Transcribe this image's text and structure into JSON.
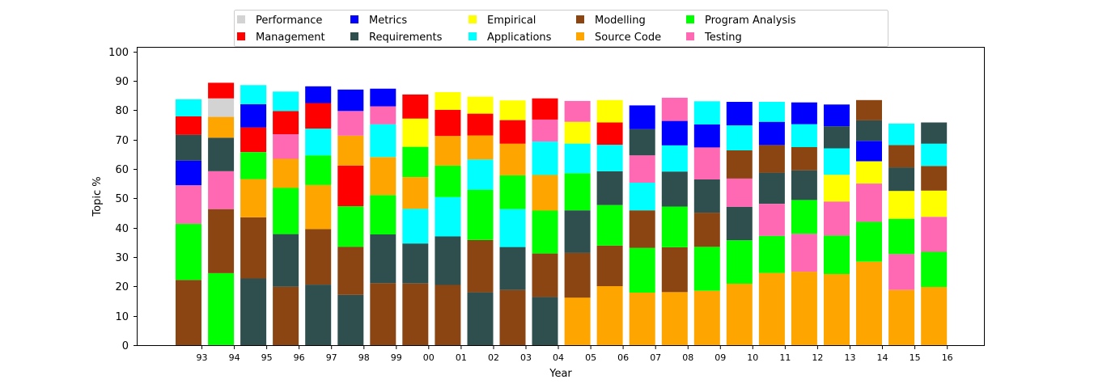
{
  "chart_data": {
    "type": "bar",
    "stacked": true,
    "xlabel": "Year",
    "ylabel": "Topic %",
    "ylim": [
      0,
      100
    ],
    "yticks": [
      0,
      10,
      20,
      30,
      40,
      50,
      60,
      70,
      80,
      90,
      100
    ],
    "grid": false,
    "legend_position": "top-center",
    "categories": [
      "93",
      "94",
      "95",
      "96",
      "97",
      "98",
      "99",
      "00",
      "01",
      "02",
      "03",
      "04",
      "05",
      "06",
      "07",
      "08",
      "09",
      "10",
      "11",
      "12",
      "13",
      "14",
      "15",
      "16"
    ],
    "legend": [
      {
        "name": "Performance",
        "color": "#d3d3d3"
      },
      {
        "name": "Management",
        "color": "#ff0000"
      },
      {
        "name": "Metrics",
        "color": "#0000ff"
      },
      {
        "name": "Requirements",
        "color": "#2f4f4f"
      },
      {
        "name": "Empirical",
        "color": "#ffff00"
      },
      {
        "name": "Applications",
        "color": "#00ffff"
      },
      {
        "name": "Modelling",
        "color": "#8b4513"
      },
      {
        "name": "Source Code",
        "color": "#ffa500"
      },
      {
        "name": "Program Analysis",
        "color": "#00ff00"
      },
      {
        "name": "Testing",
        "color": "#ff69b4"
      }
    ],
    "stacks": [
      [
        [
          "Modelling",
          22.2
        ],
        [
          "Program Analysis",
          19.1
        ],
        [
          "Testing",
          13.1
        ],
        [
          "Metrics",
          8.4
        ],
        [
          "Requirements",
          8.8
        ],
        [
          "Management",
          6.3
        ],
        [
          "Applications",
          5.8
        ]
      ],
      [
        [
          "Program Analysis",
          24.5
        ],
        [
          "Modelling",
          21.8
        ],
        [
          "Testing",
          12.9
        ],
        [
          "Requirements",
          11.4
        ],
        [
          "Source Code",
          7.1
        ],
        [
          "Performance",
          6.3
        ],
        [
          "Management",
          5.3
        ]
      ],
      [
        [
          "Requirements",
          22.7
        ],
        [
          "Modelling",
          20.8
        ],
        [
          "Source Code",
          13.0
        ],
        [
          "Program Analysis",
          9.2
        ],
        [
          "Management",
          8.4
        ],
        [
          "Metrics",
          7.9
        ],
        [
          "Applications",
          6.5
        ]
      ],
      [
        [
          "Modelling",
          19.9
        ],
        [
          "Requirements",
          17.9
        ],
        [
          "Program Analysis",
          15.7
        ],
        [
          "Source Code",
          9.9
        ],
        [
          "Testing",
          8.4
        ],
        [
          "Management",
          7.9
        ],
        [
          "Applications",
          6.6
        ]
      ],
      [
        [
          "Requirements",
          20.6
        ],
        [
          "Modelling",
          18.9
        ],
        [
          "Source Code",
          15.0
        ],
        [
          "Program Analysis",
          10.1
        ],
        [
          "Applications",
          9.1
        ],
        [
          "Management",
          8.7
        ],
        [
          "Metrics",
          5.7
        ]
      ],
      [
        [
          "Requirements",
          17.1
        ],
        [
          "Modelling",
          16.4
        ],
        [
          "Program Analysis",
          13.8
        ],
        [
          "Management",
          13.8
        ],
        [
          "Source Code",
          10.2
        ],
        [
          "Testing",
          8.4
        ],
        [
          "Metrics",
          7.3
        ]
      ],
      [
        [
          "Modelling",
          21.1
        ],
        [
          "Requirements",
          16.6
        ],
        [
          "Program Analysis",
          13.4
        ],
        [
          "Source Code",
          12.9
        ],
        [
          "Applications",
          11.2
        ],
        [
          "Testing",
          6.1
        ],
        [
          "Metrics",
          6.0
        ]
      ],
      [
        [
          "Modelling",
          21.0
        ],
        [
          "Requirements",
          13.6
        ],
        [
          "Applications",
          11.8
        ],
        [
          "Source Code",
          10.8
        ],
        [
          "Program Analysis",
          10.3
        ],
        [
          "Empirical",
          9.6
        ],
        [
          "Management",
          8.2
        ]
      ],
      [
        [
          "Modelling",
          20.5
        ],
        [
          "Requirements",
          16.5
        ],
        [
          "Applications",
          13.4
        ],
        [
          "Program Analysis",
          10.7
        ],
        [
          "Source Code",
          10.1
        ],
        [
          "Management",
          8.9
        ],
        [
          "Empirical",
          6.0
        ]
      ],
      [
        [
          "Requirements",
          18.0
        ],
        [
          "Modelling",
          17.8
        ],
        [
          "Program Analysis",
          17.1
        ],
        [
          "Applications",
          10.3
        ],
        [
          "Source Code",
          8.2
        ],
        [
          "Management",
          7.4
        ],
        [
          "Empirical",
          5.8
        ]
      ],
      [
        [
          "Modelling",
          18.8
        ],
        [
          "Requirements",
          14.6
        ],
        [
          "Applications",
          12.9
        ],
        [
          "Program Analysis",
          11.5
        ],
        [
          "Source Code",
          10.8
        ],
        [
          "Management",
          8.0
        ],
        [
          "Empirical",
          6.7
        ]
      ],
      [
        [
          "Requirements",
          16.4
        ],
        [
          "Modelling",
          14.8
        ],
        [
          "Program Analysis",
          14.6
        ],
        [
          "Source Code",
          12.1
        ],
        [
          "Applications",
          11.4
        ],
        [
          "Testing",
          7.5
        ],
        [
          "Management",
          7.2
        ]
      ],
      [
        [
          "Source Code",
          16.2
        ],
        [
          "Modelling",
          15.2
        ],
        [
          "Requirements",
          14.5
        ],
        [
          "Program Analysis",
          12.6
        ],
        [
          "Applications",
          10.1
        ],
        [
          "Empirical",
          7.4
        ],
        [
          "Testing",
          7.1
        ]
      ],
      [
        [
          "Source Code",
          20.1
        ],
        [
          "Modelling",
          13.8
        ],
        [
          "Program Analysis",
          13.8
        ],
        [
          "Requirements",
          11.5
        ],
        [
          "Applications",
          9.0
        ],
        [
          "Management",
          7.6
        ],
        [
          "Empirical",
          7.6
        ]
      ],
      [
        [
          "Source Code",
          17.9
        ],
        [
          "Program Analysis",
          15.2
        ],
        [
          "Modelling",
          12.8
        ],
        [
          "Applications",
          9.4
        ],
        [
          "Testing",
          9.3
        ],
        [
          "Requirements",
          8.9
        ],
        [
          "Metrics",
          8.1
        ]
      ],
      [
        [
          "Source Code",
          18.1
        ],
        [
          "Modelling",
          15.2
        ],
        [
          "Program Analysis",
          13.9
        ],
        [
          "Requirements",
          11.9
        ],
        [
          "Applications",
          8.9
        ],
        [
          "Metrics",
          8.3
        ],
        [
          "Testing",
          7.9
        ]
      ],
      [
        [
          "Source Code",
          18.5
        ],
        [
          "Program Analysis",
          15.0
        ],
        [
          "Modelling",
          11.6
        ],
        [
          "Requirements",
          11.3
        ],
        [
          "Testing",
          10.9
        ],
        [
          "Metrics",
          7.8
        ],
        [
          "Applications",
          7.9
        ]
      ],
      [
        [
          "Source Code",
          20.9
        ],
        [
          "Program Analysis",
          14.8
        ],
        [
          "Requirements",
          11.4
        ],
        [
          "Testing",
          9.6
        ],
        [
          "Modelling",
          9.6
        ],
        [
          "Applications",
          8.5
        ],
        [
          "Metrics",
          8.0
        ]
      ],
      [
        [
          "Source Code",
          24.6
        ],
        [
          "Program Analysis",
          12.6
        ],
        [
          "Testing",
          10.9
        ],
        [
          "Requirements",
          10.6
        ],
        [
          "Modelling",
          9.4
        ],
        [
          "Metrics",
          7.9
        ],
        [
          "Applications",
          6.8
        ]
      ],
      [
        [
          "Source Code",
          25.0
        ],
        [
          "Testing",
          12.9
        ],
        [
          "Program Analysis",
          11.5
        ],
        [
          "Requirements",
          10.1
        ],
        [
          "Modelling",
          7.9
        ],
        [
          "Applications",
          7.8
        ],
        [
          "Metrics",
          7.4
        ]
      ],
      [
        [
          "Source Code",
          24.2
        ],
        [
          "Program Analysis",
          13.1
        ],
        [
          "Testing",
          11.6
        ],
        [
          "Empirical",
          9.1
        ],
        [
          "Applications",
          9.0
        ],
        [
          "Requirements",
          7.5
        ],
        [
          "Metrics",
          7.4
        ]
      ],
      [
        [
          "Source Code",
          28.4
        ],
        [
          "Program Analysis",
          13.6
        ],
        [
          "Testing",
          13.0
        ],
        [
          "Empirical",
          7.6
        ],
        [
          "Metrics",
          6.9
        ],
        [
          "Requirements",
          7.0
        ],
        [
          "Modelling",
          6.9
        ]
      ],
      [
        [
          "Source Code",
          18.8
        ],
        [
          "Testing",
          12.2
        ],
        [
          "Program Analysis",
          12.0
        ],
        [
          "Empirical",
          9.5
        ],
        [
          "Requirements",
          8.0
        ],
        [
          "Modelling",
          7.6
        ],
        [
          "Applications",
          7.3
        ]
      ],
      [
        [
          "Source Code",
          19.8
        ],
        [
          "Program Analysis",
          12.0
        ],
        [
          "Testing",
          11.9
        ],
        [
          "Empirical",
          8.9
        ],
        [
          "Modelling",
          8.4
        ],
        [
          "Applications",
          7.6
        ],
        [
          "Requirements",
          7.2
        ]
      ]
    ]
  }
}
